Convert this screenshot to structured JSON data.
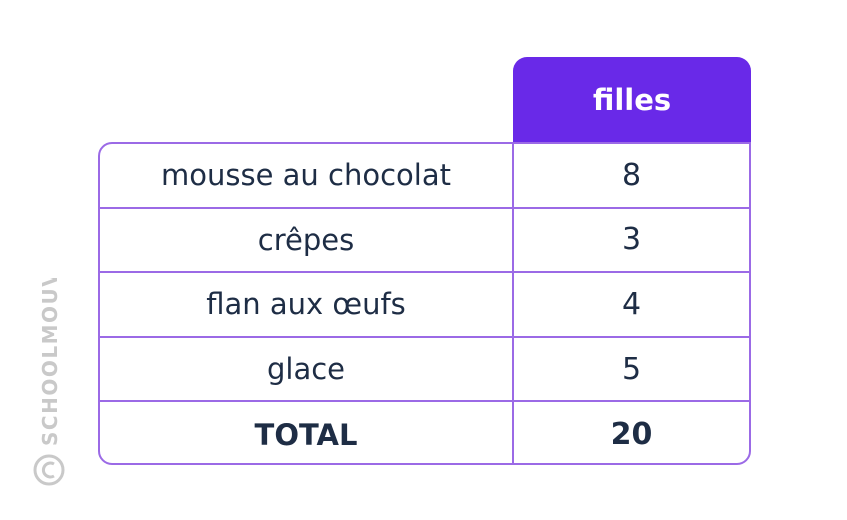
{
  "table": {
    "header": "filles",
    "rows": [
      {
        "label": "mousse au chocolat",
        "value": "8"
      },
      {
        "label": "crêpes",
        "value": "3"
      },
      {
        "label": "flan aux œufs",
        "value": "4"
      },
      {
        "label": "glace",
        "value": "5"
      },
      {
        "label": "TOTAL",
        "value": "20"
      }
    ]
  },
  "watermark": {
    "text": "SCHOOLMOUV",
    "color": "#c9c9c9"
  },
  "colors": {
    "header_bg": "#6929e8",
    "border": "#9b6ae6",
    "text": "#1e2d45"
  }
}
